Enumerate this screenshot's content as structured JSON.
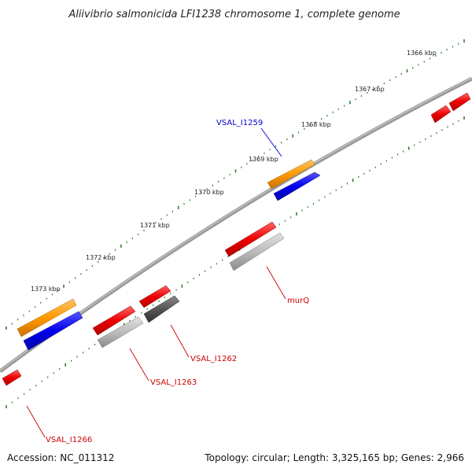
{
  "title": "Aliivibrio salmonicida LFI1238 chromosome 1, complete genome",
  "footer": {
    "accession": "Accession: NC_011312",
    "topology": "Topology: circular; Length: 3,325,165 bp; Genes: 2,966"
  },
  "kbp_labels": [
    "1366 kbp",
    "1367 kbp",
    "1368 kbp",
    "1369 kbp",
    "1370 kbp",
    "1371 kbp",
    "1372 kbp",
    "1373 kbp"
  ],
  "gene_labels": [
    {
      "name": "VSAL_I1259",
      "color": "#0000cc"
    },
    {
      "name": "murQ",
      "color": "#cc0000"
    },
    {
      "name": "VSAL_I1262",
      "color": "#cc0000"
    },
    {
      "name": "VSAL_I1263",
      "color": "#cc0000"
    },
    {
      "name": "VSAL_I1266",
      "color": "#cc0000"
    }
  ],
  "colors": {
    "backbone": "#808080",
    "tick": "#2e7d2e",
    "red_feature": "#ee0000",
    "orange_feature": "#ff9900",
    "blue_feature": "#0000ee",
    "gray_feature": "#b8b8b8",
    "dark_gray_feature": "#555555"
  }
}
